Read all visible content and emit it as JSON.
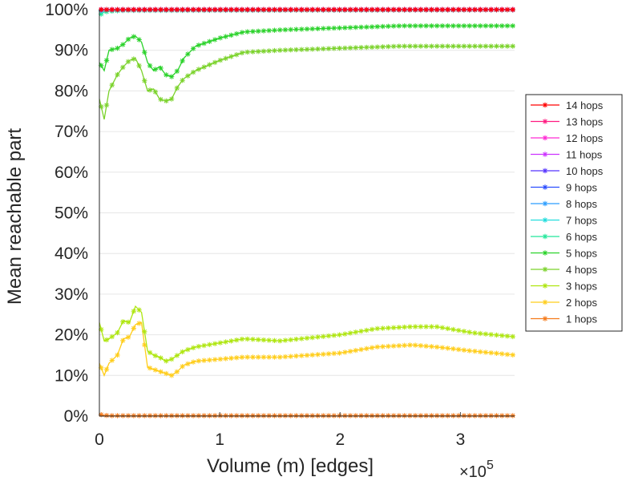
{
  "chart_data": {
    "type": "line",
    "title": "",
    "xlabel": "Volume (m) [edges]",
    "ylabel": "Mean reachable part",
    "x_multiplier_label": "×10",
    "x_multiplier_exponent": "5",
    "xlim": [
      0,
      345000
    ],
    "ylim": [
      0,
      100
    ],
    "x_ticks": [
      {
        "value": 0,
        "label": "0"
      },
      {
        "value": 100000,
        "label": "1"
      },
      {
        "value": 200000,
        "label": "2"
      },
      {
        "value": 300000,
        "label": "3"
      }
    ],
    "y_ticks": [
      {
        "value": 0,
        "label": "0%"
      },
      {
        "value": 10,
        "label": "10%"
      },
      {
        "value": 20,
        "label": "20%"
      },
      {
        "value": 30,
        "label": "30%"
      },
      {
        "value": 40,
        "label": "40%"
      },
      {
        "value": 50,
        "label": "50%"
      },
      {
        "value": 60,
        "label": "60%"
      },
      {
        "value": 70,
        "label": "70%"
      },
      {
        "value": 80,
        "label": "80%"
      },
      {
        "value": 90,
        "label": "90%"
      },
      {
        "value": 100,
        "label": "100%"
      }
    ],
    "grid": true,
    "legend_position": "right",
    "series": [
      {
        "name": "14 hops",
        "color": "#ff0000",
        "x": [
          0,
          345000
        ],
        "values": [
          100,
          100
        ]
      },
      {
        "name": "13 hops",
        "color": "#ff1a80",
        "x": [
          0,
          345000
        ],
        "values": [
          100,
          100
        ]
      },
      {
        "name": "12 hops",
        "color": "#ff2ad4",
        "x": [
          0,
          345000
        ],
        "values": [
          100,
          100
        ]
      },
      {
        "name": "11 hops",
        "color": "#cc33ff",
        "x": [
          0,
          345000
        ],
        "values": [
          100,
          100
        ]
      },
      {
        "name": "10 hops",
        "color": "#5533ff",
        "x": [
          0,
          345000
        ],
        "values": [
          100,
          100
        ]
      },
      {
        "name": "9 hops",
        "color": "#2a4dff",
        "x": [
          0,
          345000
        ],
        "values": [
          100,
          100
        ]
      },
      {
        "name": "8 hops",
        "color": "#2a9dff",
        "x": [
          0,
          5000,
          345000
        ],
        "values": [
          99.8,
          100,
          100
        ]
      },
      {
        "name": "7 hops",
        "color": "#22dddd",
        "x": [
          0,
          5000,
          345000
        ],
        "values": [
          99.5,
          99.9,
          100
        ]
      },
      {
        "name": "6 hops",
        "color": "#22e89a",
        "x": [
          0,
          3000,
          8000,
          20000,
          345000
        ],
        "values": [
          98.5,
          99.3,
          99.6,
          99.8,
          99.9
        ]
      },
      {
        "name": "5 hops",
        "color": "#2ad22a",
        "x": [
          0,
          4000,
          8000,
          15000,
          20000,
          25000,
          30000,
          35000,
          40000,
          45000,
          50000,
          55000,
          60000,
          65000,
          70000,
          80000,
          100000,
          120000,
          150000,
          200000,
          250000,
          300000,
          345000
        ],
        "values": [
          87,
          85,
          90,
          90.5,
          91.5,
          93,
          93.5,
          92,
          87,
          85,
          86,
          84,
          83.5,
          85,
          88,
          91,
          93,
          94.5,
          95,
          95.5,
          96,
          96,
          96
        ]
      },
      {
        "name": "4 hops",
        "color": "#7ad22a",
        "x": [
          0,
          4000,
          8000,
          15000,
          20000,
          25000,
          30000,
          35000,
          40000,
          45000,
          50000,
          55000,
          60000,
          65000,
          70000,
          80000,
          100000,
          120000,
          150000,
          200000,
          250000,
          300000,
          345000
        ],
        "values": [
          78,
          73,
          80,
          84,
          86,
          87.5,
          88,
          85,
          80,
          80.5,
          78,
          77.5,
          78,
          81,
          83,
          85,
          87.5,
          89.5,
          90,
          90.5,
          91,
          91,
          91
        ]
      },
      {
        "name": "3 hops",
        "color": "#aee60f",
        "x": [
          0,
          4000,
          8000,
          15000,
          20000,
          25000,
          30000,
          35000,
          40000,
          45000,
          50000,
          55000,
          60000,
          65000,
          70000,
          80000,
          100000,
          120000,
          150000,
          200000,
          230000,
          260000,
          280000,
          310000,
          345000
        ],
        "values": [
          23,
          18.5,
          19,
          20.5,
          23.5,
          23,
          27,
          25.5,
          16,
          15,
          14.5,
          13.5,
          14,
          15,
          16,
          17,
          18,
          19,
          18.5,
          20,
          21.5,
          22,
          22,
          20.5,
          19.5
        ]
      },
      {
        "name": "2 hops",
        "color": "#ffcd1a",
        "x": [
          0,
          4000,
          8000,
          15000,
          20000,
          25000,
          30000,
          35000,
          40000,
          45000,
          50000,
          55000,
          60000,
          65000,
          70000,
          80000,
          100000,
          120000,
          150000,
          200000,
          230000,
          260000,
          280000,
          310000,
          345000
        ],
        "values": [
          13,
          10,
          13,
          15,
          19,
          19.5,
          22.5,
          23,
          12,
          11.5,
          11,
          10.5,
          10,
          11,
          12.5,
          13.5,
          14,
          14.5,
          14.5,
          15.5,
          17,
          17.5,
          17,
          16,
          15
        ]
      },
      {
        "name": "1 hops",
        "color": "#f57a1a",
        "x": [
          0,
          3000,
          10000,
          345000
        ],
        "values": [
          0.5,
          0.2,
          0.1,
          0.1
        ]
      }
    ]
  }
}
